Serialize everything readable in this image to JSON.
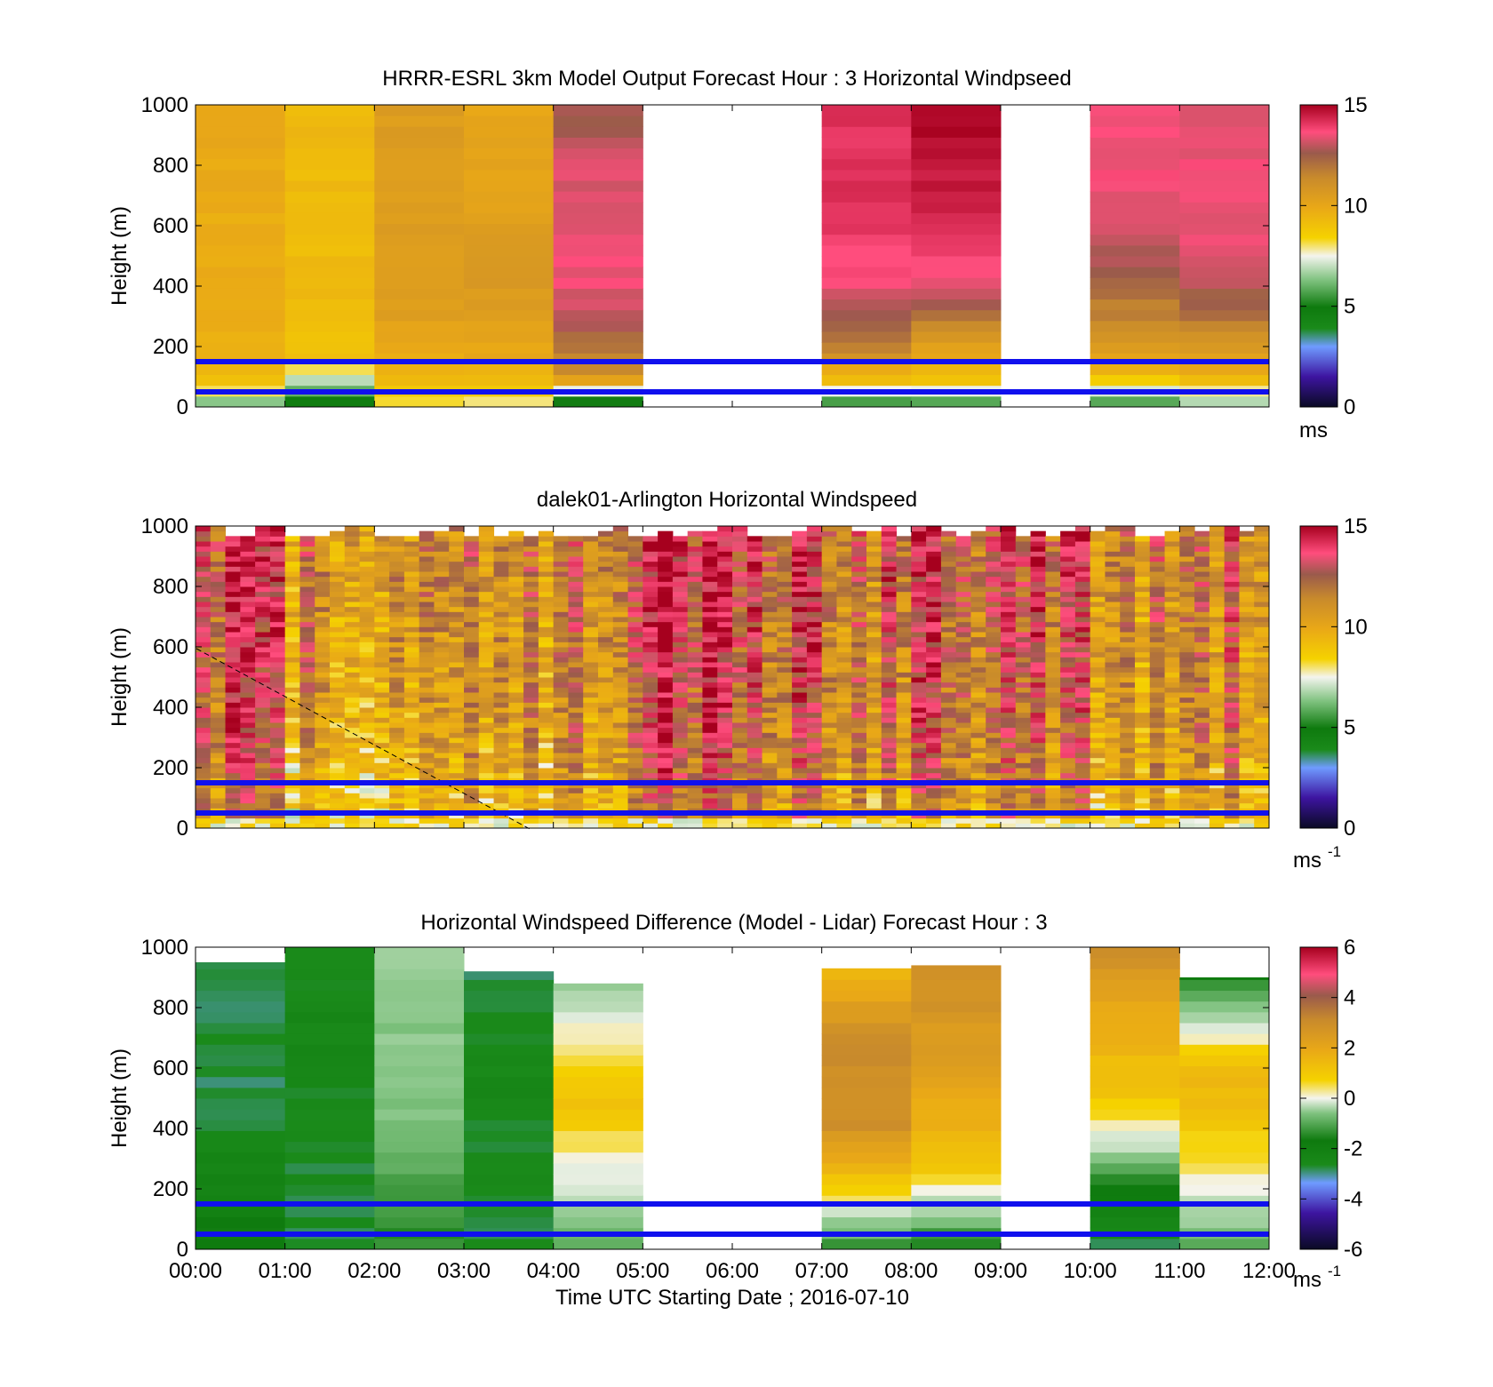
{
  "figure": {
    "xlabel": "Time UTC  Starting Date ; 2016-07-10",
    "x_ticks": [
      "00:00",
      "01:00",
      "02:00",
      "03:00",
      "04:00",
      "05:00",
      "06:00",
      "07:00",
      "08:00",
      "09:00",
      "10:00",
      "11:00",
      "12:00"
    ],
    "y_ticks": [
      "0",
      "200",
      "400",
      "600",
      "800",
      "1000"
    ],
    "ylabel": "Height (m)"
  },
  "chart_data": [
    {
      "type": "heatmap",
      "title": "HRRR-ESRL 3km Model Output   Forecast Hour : 3 Horizontal Windpseed",
      "ylabel": "Height (m)",
      "ylim": [
        0,
        1000
      ],
      "xlim_hours": [
        0,
        12
      ],
      "colorbar": {
        "min": 0,
        "max": 15,
        "ticks": [
          "0",
          "5",
          "10",
          "15"
        ],
        "unit": "ms"
      },
      "reference_lines_m": [
        50,
        150
      ],
      "missing_hours": [
        "05:00",
        "06:00",
        "09:00"
      ],
      "columns": [
        {
          "start": "00:00",
          "profile": [
            [
              0,
              6
            ],
            [
              100,
              9.5
            ],
            [
              300,
              9.7
            ],
            [
              1000,
              9.9
            ]
          ]
        },
        {
          "start": "01:00",
          "profile": [
            [
              0,
              4
            ],
            [
              150,
              9
            ],
            [
              300,
              9.2
            ],
            [
              1000,
              9.3
            ]
          ]
        },
        {
          "start": "02:00",
          "profile": [
            [
              0,
              8
            ],
            [
              100,
              9.5
            ],
            [
              300,
              10.3
            ],
            [
              1000,
              10.5
            ]
          ]
        },
        {
          "start": "03:00",
          "profile": [
            [
              0,
              7.8
            ],
            [
              100,
              9.6
            ],
            [
              350,
              10.6
            ],
            [
              1000,
              10
            ]
          ]
        },
        {
          "start": "04:00",
          "profile": [
            [
              0,
              3.5
            ],
            [
              100,
              11
            ],
            [
              250,
              12.5
            ],
            [
              400,
              13.5
            ],
            [
              800,
              13.3
            ],
            [
              1000,
              12.5
            ]
          ]
        },
        {
          "start": "07:00",
          "profile": [
            [
              0,
              5
            ],
            [
              100,
              9.5
            ],
            [
              200,
              11.5
            ],
            [
              400,
              13.5
            ],
            [
              700,
              14.2
            ],
            [
              1000,
              14
            ]
          ]
        },
        {
          "start": "08:00",
          "profile": [
            [
              0,
              5
            ],
            [
              100,
              9.2
            ],
            [
              250,
              11
            ],
            [
              400,
              13.5
            ],
            [
              700,
              14.5
            ],
            [
              1000,
              15
            ]
          ]
        },
        {
          "start": "10:00",
          "profile": [
            [
              0,
              5
            ],
            [
              100,
              9.2
            ],
            [
              300,
              11.5
            ],
            [
              600,
              13.5
            ],
            [
              1000,
              13.6
            ]
          ]
        },
        {
          "start": "11:00",
          "profile": [
            [
              0,
              6
            ],
            [
              100,
              9.5
            ],
            [
              300,
              12
            ],
            [
              500,
              13.5
            ],
            [
              1000,
              13.5
            ]
          ]
        }
      ]
    },
    {
      "type": "heatmap",
      "title": "dalek01-Arlington  Horizontal Windspeed",
      "ylabel": "Height (m)",
      "ylim": [
        0,
        1000
      ],
      "xlim_hours": [
        0,
        12
      ],
      "colorbar": {
        "min": 0,
        "max": 15,
        "ticks": [
          "0",
          "5",
          "10",
          "15"
        ],
        "unit": "ms",
        "unit_exp": "-1"
      },
      "reference_lines_m": [
        50,
        150
      ],
      "column_minutes": 10,
      "hourly_mean_speed": [
        13,
        10.7,
        10.2,
        10.8,
        11.2,
        13.5,
        12.6,
        11.8,
        12.4,
        12.2,
        10.5,
        11.6
      ]
    },
    {
      "type": "heatmap",
      "title": "Horizontal Windspeed Difference (Model - Lidar) Forecast Hour : 3",
      "xlabel": "Time UTC  Starting Date ; 2016-07-10",
      "ylabel": "Height (m)",
      "ylim": [
        0,
        1000
      ],
      "xlim_hours": [
        0,
        12
      ],
      "colorbar": {
        "min": -6,
        "max": 6,
        "ticks": [
          "-6",
          "-4",
          "-2",
          "0",
          "2",
          "4",
          "6"
        ],
        "unit": "ms",
        "unit_exp": "-1"
      },
      "reference_lines_m": [
        50,
        150
      ],
      "missing_hours": [
        "05:00",
        "06:00",
        "09:00"
      ],
      "columns": [
        {
          "start": "00:00",
          "top_m": 950,
          "profile": [
            [
              0,
              -2
            ],
            [
              480,
              -3
            ]
          ]
        },
        {
          "start": "01:00",
          "top_m": 1000,
          "profile": [
            [
              0,
              -3
            ],
            [
              500,
              -2.8
            ],
            [
              1000,
              -2.8
            ]
          ]
        },
        {
          "start": "02:00",
          "top_m": 1000,
          "profile": [
            [
              0,
              -1.8
            ],
            [
              400,
              -1
            ],
            [
              1000,
              -0.7
            ]
          ]
        },
        {
          "start": "03:00",
          "top_m": 920,
          "profile": [
            [
              0,
              -3
            ],
            [
              500,
              -2.8
            ],
            [
              900,
              -3
            ]
          ]
        },
        {
          "start": "04:00",
          "top_m": 880,
          "profile": [
            [
              0,
              -1.5
            ],
            [
              200,
              -0.3
            ],
            [
              500,
              1.2
            ],
            [
              700,
              0.3
            ],
            [
              880,
              -1
            ]
          ]
        },
        {
          "start": "07:00",
          "top_m": 930,
          "profile": [
            [
              0,
              -2
            ],
            [
              170,
              0.5
            ],
            [
              400,
              2.8
            ],
            [
              700,
              3
            ],
            [
              930,
              1.3
            ]
          ]
        },
        {
          "start": "08:00",
          "top_m": 940,
          "profile": [
            [
              0,
              -2
            ],
            [
              150,
              -0.5
            ],
            [
              250,
              1
            ],
            [
              500,
              2
            ],
            [
              940,
              3
            ]
          ]
        },
        {
          "start": "10:00",
          "top_m": 1000,
          "profile": [
            [
              0,
              -3
            ],
            [
              200,
              -2
            ],
            [
              350,
              -0.3
            ],
            [
              500,
              1
            ],
            [
              800,
              2
            ],
            [
              1000,
              3
            ]
          ]
        },
        {
          "start": "11:00",
          "top_m": 900,
          "profile": [
            [
              0,
              -1.5
            ],
            [
              200,
              0
            ],
            [
              450,
              1.2
            ],
            [
              600,
              1.5
            ],
            [
              800,
              -1
            ],
            [
              900,
              -2
            ]
          ]
        }
      ]
    }
  ]
}
